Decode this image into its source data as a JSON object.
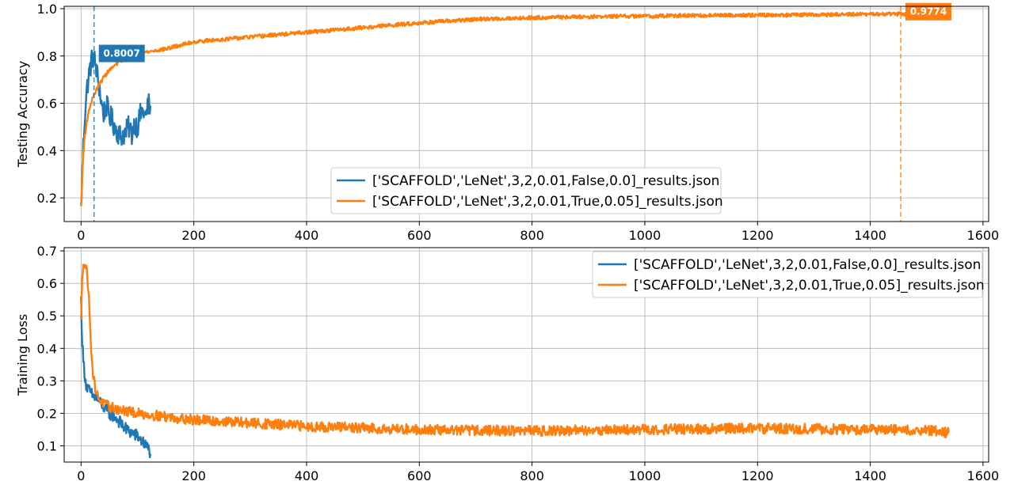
{
  "colors": {
    "blue": "#1f77b4",
    "orange": "#ff7f0e",
    "grid": "#b0b0b0"
  },
  "chart_data": [
    {
      "type": "line",
      "ylabel": "Testing Accuracy",
      "xlim": [
        -30,
        1610
      ],
      "ylim": [
        0.1,
        1.01
      ],
      "xticks": [
        0,
        200,
        400,
        600,
        800,
        1000,
        1200,
        1400,
        1600
      ],
      "yticks": [
        0.2,
        0.4,
        0.6,
        0.8,
        1.0
      ],
      "ytick_labels": [
        "0.2",
        "0.4",
        "0.6",
        "0.8",
        "1.0"
      ],
      "grid": true,
      "legend_position": "lower-center",
      "series": [
        {
          "name": "['SCAFFOLD','LeNet',3,2,0.01,False,0.0]_results.json",
          "color": "#1f77b4",
          "x_max": 123,
          "points": [
            [
              0,
              0.15
            ],
            [
              2,
              0.3
            ],
            [
              4,
              0.42
            ],
            [
              6,
              0.52
            ],
            [
              8,
              0.6
            ],
            [
              10,
              0.65
            ],
            [
              12,
              0.69
            ],
            [
              14,
              0.72
            ],
            [
              16,
              0.75
            ],
            [
              18,
              0.77
            ],
            [
              20,
              0.79
            ],
            [
              22,
              0.8
            ],
            [
              24,
              0.78
            ],
            [
              26,
              0.76
            ],
            [
              28,
              0.73
            ],
            [
              30,
              0.7
            ],
            [
              33,
              0.66
            ],
            [
              36,
              0.6
            ],
            [
              40,
              0.56
            ],
            [
              45,
              0.59
            ],
            [
              50,
              0.55
            ],
            [
              55,
              0.53
            ],
            [
              60,
              0.5
            ],
            [
              65,
              0.48
            ],
            [
              70,
              0.46
            ],
            [
              75,
              0.47
            ],
            [
              80,
              0.48
            ],
            [
              85,
              0.5
            ],
            [
              90,
              0.47
            ],
            [
              95,
              0.52
            ],
            [
              100,
              0.5
            ],
            [
              105,
              0.55
            ],
            [
              110,
              0.57
            ],
            [
              115,
              0.54
            ],
            [
              118,
              0.58
            ],
            [
              121,
              0.6
            ],
            [
              123,
              0.56
            ]
          ],
          "noise": 0.05
        },
        {
          "name": "['SCAFFOLD','LeNet',3,2,0.01,True,0.05]_results.json",
          "color": "#ff7f0e",
          "x_max": 1540,
          "points": [
            [
              0,
              0.16
            ],
            [
              3,
              0.35
            ],
            [
              6,
              0.45
            ],
            [
              10,
              0.52
            ],
            [
              15,
              0.58
            ],
            [
              20,
              0.62
            ],
            [
              30,
              0.67
            ],
            [
              40,
              0.71
            ],
            [
              50,
              0.74
            ],
            [
              70,
              0.78
            ],
            [
              100,
              0.81
            ],
            [
              150,
              0.83
            ],
            [
              200,
              0.86
            ],
            [
              250,
              0.87
            ],
            [
              300,
              0.88
            ],
            [
              350,
              0.89
            ],
            [
              400,
              0.9
            ],
            [
              450,
              0.91
            ],
            [
              500,
              0.92
            ],
            [
              550,
              0.93
            ],
            [
              600,
              0.94
            ],
            [
              700,
              0.955
            ],
            [
              800,
              0.962
            ],
            [
              900,
              0.966
            ],
            [
              1000,
              0.969
            ],
            [
              1100,
              0.971
            ],
            [
              1200,
              0.973
            ],
            [
              1300,
              0.974
            ],
            [
              1400,
              0.9765
            ],
            [
              1454,
              0.9774
            ],
            [
              1500,
              0.975
            ],
            [
              1540,
              0.973
            ]
          ],
          "noise": 0.008
        }
      ],
      "annotations": [
        {
          "label": "0.8007",
          "x": 23,
          "y": 0.8007,
          "color": "#1f77b4"
        },
        {
          "label": "0.9774",
          "x": 1454,
          "y": 0.9774,
          "color": "#ff7f0e"
        }
      ]
    },
    {
      "type": "line",
      "ylabel": "Training Loss",
      "xlim": [
        -30,
        1610
      ],
      "ylim": [
        0.05,
        0.71
      ],
      "xticks": [
        0,
        200,
        400,
        600,
        800,
        1000,
        1200,
        1400,
        1600
      ],
      "yticks": [
        0.1,
        0.2,
        0.3,
        0.4,
        0.5,
        0.6,
        0.7
      ],
      "ytick_labels": [
        "0.1",
        "0.2",
        "0.3",
        "0.4",
        "0.5",
        "0.6",
        "0.7"
      ],
      "grid": true,
      "legend_position": "top-right",
      "series": [
        {
          "name": "['SCAFFOLD','LeNet',3,2,0.01,False,0.0]_results.json",
          "color": "#1f77b4",
          "x_max": 123,
          "points": [
            [
              0,
              0.55
            ],
            [
              2,
              0.42
            ],
            [
              4,
              0.36
            ],
            [
              6,
              0.33
            ],
            [
              8,
              0.3
            ],
            [
              10,
              0.28
            ],
            [
              14,
              0.27
            ],
            [
              18,
              0.26
            ],
            [
              22,
              0.25
            ],
            [
              26,
              0.25
            ],
            [
              30,
              0.24
            ],
            [
              35,
              0.23
            ],
            [
              40,
              0.22
            ],
            [
              50,
              0.2
            ],
            [
              60,
              0.19
            ],
            [
              70,
              0.17
            ],
            [
              80,
              0.15
            ],
            [
              90,
              0.14
            ],
            [
              100,
              0.13
            ],
            [
              110,
              0.11
            ],
            [
              115,
              0.1
            ],
            [
              120,
              0.09
            ],
            [
              123,
              0.08
            ]
          ],
          "noise": 0.02
        },
        {
          "name": "['SCAFFOLD','LeNet',3,2,0.01,True,0.05]_results.json",
          "color": "#ff7f0e",
          "x_max": 1540,
          "points": [
            [
              0,
              0.48
            ],
            [
              2,
              0.62
            ],
            [
              4,
              0.67
            ],
            [
              6,
              0.66
            ],
            [
              10,
              0.64
            ],
            [
              13,
              0.58
            ],
            [
              16,
              0.48
            ],
            [
              18,
              0.4
            ],
            [
              20,
              0.34
            ],
            [
              23,
              0.3
            ],
            [
              26,
              0.27
            ],
            [
              30,
              0.25
            ],
            [
              40,
              0.23
            ],
            [
              50,
              0.22
            ],
            [
              70,
              0.21
            ],
            [
              100,
              0.2
            ],
            [
              150,
              0.19
            ],
            [
              200,
              0.18
            ],
            [
              300,
              0.17
            ],
            [
              400,
              0.16
            ],
            [
              500,
              0.155
            ],
            [
              600,
              0.15
            ],
            [
              700,
              0.148
            ],
            [
              800,
              0.146
            ],
            [
              900,
              0.148
            ],
            [
              1000,
              0.15
            ],
            [
              1100,
              0.152
            ],
            [
              1200,
              0.154
            ],
            [
              1300,
              0.152
            ],
            [
              1400,
              0.15
            ],
            [
              1500,
              0.149
            ],
            [
              1540,
              0.14
            ]
          ],
          "noise": 0.016
        }
      ]
    }
  ]
}
